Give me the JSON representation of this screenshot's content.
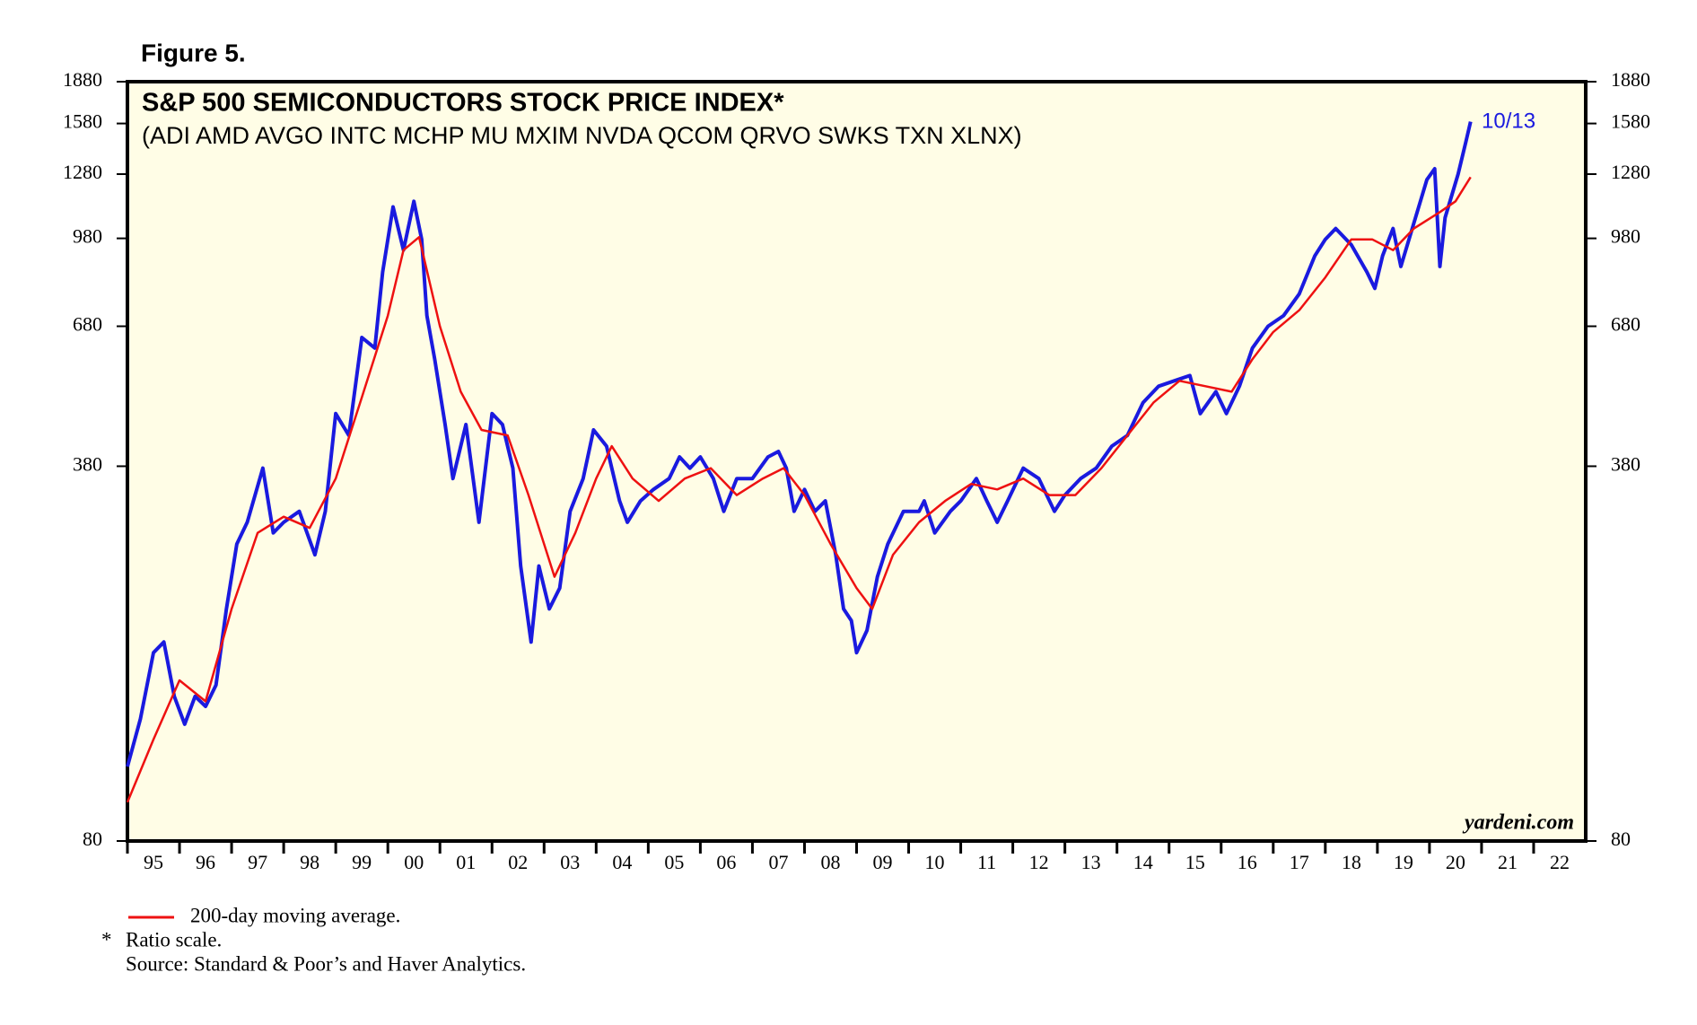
{
  "chart_data": {
    "type": "line",
    "figure_label": "Figure 5.",
    "title": "S&P 500 SEMICONDUCTORS STOCK PRICE INDEX*",
    "subtitle": "(ADI AMD AVGO INTC MCHP MU MXIM NVDA QCOM QRVO SWKS TXN XLNX)",
    "annotation": "10/13",
    "watermark": "yardeni.com",
    "yscale": "log",
    "grid": false,
    "ylim": [
      80,
      1880
    ],
    "yticks": [
      80,
      380,
      680,
      980,
      1280,
      1580,
      1880
    ],
    "xlim": [
      1995,
      2023
    ],
    "xticks": [
      {
        "value": 1995,
        "label": "95"
      },
      {
        "value": 1996,
        "label": "96"
      },
      {
        "value": 1997,
        "label": "97"
      },
      {
        "value": 1998,
        "label": "98"
      },
      {
        "value": 1999,
        "label": "99"
      },
      {
        "value": 2000,
        "label": "00"
      },
      {
        "value": 2001,
        "label": "01"
      },
      {
        "value": 2002,
        "label": "02"
      },
      {
        "value": 2003,
        "label": "03"
      },
      {
        "value": 2004,
        "label": "04"
      },
      {
        "value": 2005,
        "label": "05"
      },
      {
        "value": 2006,
        "label": "06"
      },
      {
        "value": 2007,
        "label": "07"
      },
      {
        "value": 2008,
        "label": "08"
      },
      {
        "value": 2009,
        "label": "09"
      },
      {
        "value": 2010,
        "label": "10"
      },
      {
        "value": 2011,
        "label": "11"
      },
      {
        "value": 2012,
        "label": "12"
      },
      {
        "value": 2013,
        "label": "13"
      },
      {
        "value": 2014,
        "label": "14"
      },
      {
        "value": 2015,
        "label": "15"
      },
      {
        "value": 2016,
        "label": "16"
      },
      {
        "value": 2017,
        "label": "17"
      },
      {
        "value": 2018,
        "label": "18"
      },
      {
        "value": 2019,
        "label": "19"
      },
      {
        "value": 2020,
        "label": "20"
      },
      {
        "value": 2021,
        "label": "21"
      },
      {
        "value": 2022,
        "label": "22"
      }
    ],
    "series": [
      {
        "color": "#1a1adf",
        "x": [
          1995.0,
          1995.25,
          1995.5,
          1995.7,
          1995.9,
          1996.1,
          1996.3,
          1996.5,
          1996.7,
          1996.9,
          1997.1,
          1997.3,
          1997.6,
          1997.8,
          1998.0,
          1998.3,
          1998.6,
          1998.8,
          1999.0,
          1999.25,
          1999.5,
          1999.75,
          1999.9,
          2000.1,
          2000.3,
          2000.5,
          2000.65,
          2000.75,
          2000.9,
          2001.1,
          2001.25,
          2001.5,
          2001.75,
          2002.0,
          2002.2,
          2002.4,
          2002.55,
          2002.75,
          2002.9,
          2003.1,
          2003.3,
          2003.5,
          2003.75,
          2003.95,
          2004.2,
          2004.45,
          2004.6,
          2004.85,
          2005.1,
          2005.4,
          2005.6,
          2005.8,
          2006.0,
          2006.25,
          2006.45,
          2006.7,
          2007.0,
          2007.3,
          2007.5,
          2007.65,
          2007.8,
          2008.0,
          2008.2,
          2008.4,
          2008.6,
          2008.75,
          2008.9,
          2009.0,
          2009.2,
          2009.4,
          2009.6,
          2009.9,
          2010.2,
          2010.3,
          2010.5,
          2010.8,
          2011.0,
          2011.3,
          2011.5,
          2011.7,
          2011.9,
          2012.2,
          2012.5,
          2012.8,
          2013.0,
          2013.3,
          2013.6,
          2013.9,
          2014.2,
          2014.5,
          2014.8,
          2015.1,
          2015.4,
          2015.6,
          2015.9,
          2016.1,
          2016.35,
          2016.6,
          2016.9,
          2017.2,
          2017.5,
          2017.8,
          2018.0,
          2018.2,
          2018.5,
          2018.8,
          2018.95,
          2019.1,
          2019.3,
          2019.45,
          2019.7,
          2019.95,
          2020.1,
          2020.2,
          2020.3,
          2020.55,
          2020.7,
          2020.79
        ],
        "values": [
          109,
          133,
          175,
          183,
          146,
          130,
          146,
          140,
          153,
          210,
          275,
          301,
          377,
          288,
          301,
          315,
          263,
          315,
          473,
          432,
          649,
          621,
          852,
          1117,
          933,
          1143,
          976,
          711,
          593,
          452,
          361,
          452,
          301,
          473,
          452,
          377,
          251,
          183,
          251,
          210,
          229,
          315,
          361,
          442,
          413,
          329,
          301,
          329,
          345,
          361,
          395,
          377,
          395,
          361,
          315,
          361,
          361,
          395,
          404,
          377,
          315,
          345,
          315,
          329,
          263,
          210,
          200,
          175,
          192,
          240,
          275,
          315,
          315,
          329,
          288,
          315,
          329,
          361,
          329,
          301,
          329,
          377,
          361,
          315,
          337,
          361,
          377,
          413,
          432,
          495,
          530,
          542,
          554,
          473,
          518,
          473,
          530,
          621,
          680,
          711,
          778,
          912,
          976,
          1021,
          954,
          852,
          796,
          912,
          1021,
          872,
          1044,
          1251,
          1309,
          872,
          1068,
          1280,
          1465,
          1592
        ]
      },
      {
        "name": "200-day moving average.",
        "color": "#ee1111",
        "x": [
          1995.0,
          1995.5,
          1996.0,
          1996.5,
          1997.0,
          1997.5,
          1998.0,
          1998.5,
          1999.0,
          1999.5,
          2000.0,
          2000.3,
          2000.6,
          2001.0,
          2001.4,
          2001.8,
          2002.3,
          2002.7,
          2003.2,
          2003.6,
          2004.0,
          2004.3,
          2004.7,
          2005.2,
          2005.7,
          2006.2,
          2006.7,
          2007.2,
          2007.6,
          2008.0,
          2008.5,
          2009.0,
          2009.3,
          2009.7,
          2010.2,
          2010.7,
          2011.2,
          2011.7,
          2012.2,
          2012.7,
          2013.2,
          2013.7,
          2014.2,
          2014.7,
          2015.2,
          2015.7,
          2016.2,
          2016.6,
          2017.0,
          2017.5,
          2018.0,
          2018.5,
          2018.9,
          2019.3,
          2019.7,
          2020.2,
          2020.5,
          2020.79
        ],
        "values": [
          94,
          122,
          156,
          143,
          210,
          288,
          308,
          294,
          361,
          506,
          711,
          933,
          985,
          680,
          518,
          442,
          432,
          337,
          240,
          288,
          361,
          413,
          361,
          329,
          361,
          377,
          337,
          361,
          377,
          337,
          275,
          229,
          210,
          263,
          301,
          329,
          353,
          345,
          361,
          337,
          337,
          377,
          432,
          495,
          542,
          530,
          518,
          593,
          664,
          727,
          833,
          976,
          976,
          933,
          1021,
          1093,
          1143,
          1264
        ]
      }
    ],
    "notes": [
      "*",
      "Ratio scale.",
      "Source: Standard & Poor’s and Haver Analytics."
    ]
  }
}
